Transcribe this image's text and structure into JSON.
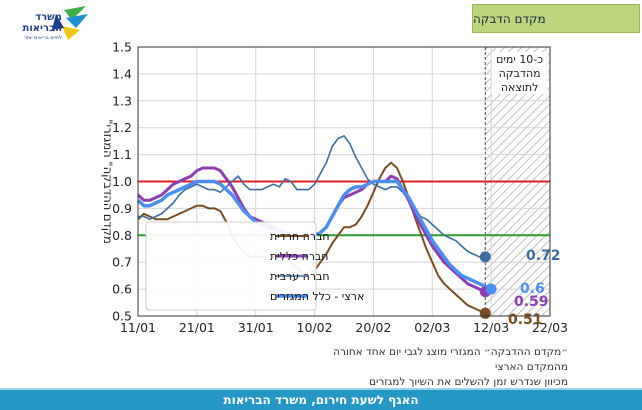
{
  "header": {
    "title": "מקדם הדבקה"
  },
  "logo": {
    "line1": "משרד",
    "line2": "הבריאות",
    "tagline": "לחיים בריאים יותר"
  },
  "footer": {
    "text": "האגף לשעת חירום, משרד הבריאות"
  },
  "caption": {
    "line1": "״מקדם ההדבקה״ המגזרי מוצג לגבי יום אחד אחורה מהמקדם הארצי",
    "line2": "מכיוון שנדרש זמן להשלים את השיוך למגזרים"
  },
  "colors": {
    "haredi": "#7a4e22",
    "general": "#8b3fb0",
    "arab": "#3d6ea0",
    "national": "#4b8ff0",
    "ref_1": "#e02020",
    "ref_08": "#2aa02a",
    "hatch": "#a8a8a8"
  },
  "chart_data": {
    "type": "line",
    "ylabel": "\"מקדם ההדבקה\" המגזרי",
    "ylim": [
      0.5,
      1.5
    ],
    "yticks": [
      "0.5",
      "0.6",
      "0.7",
      "0.8",
      "0.9",
      "1.0",
      "1.1",
      "1.2",
      "1.3",
      "1.4",
      "1.5"
    ],
    "xlim_days": [
      0,
      70
    ],
    "xticks": [
      {
        "label": "11/01",
        "day": 0
      },
      {
        "label": "21/01",
        "day": 10
      },
      {
        "label": "31/01",
        "day": 20
      },
      {
        "label": "10/02",
        "day": 30
      },
      {
        "label": "20/02",
        "day": 40
      },
      {
        "label": "02/03",
        "day": 50
      },
      {
        "label": "12/03",
        "day": 60
      },
      {
        "label": "22/03",
        "day": 70
      }
    ],
    "hatched_region": {
      "from_day": 59,
      "to_day": 70,
      "label_lines": [
        "כ-10 ימים",
        "מהדבקה",
        "לתוצאה"
      ]
    },
    "reference_lines": [
      {
        "y": 1.0,
        "color_key": "ref_1"
      },
      {
        "y": 0.8,
        "color_key": "ref_08"
      }
    ],
    "series": [
      {
        "name": "חברה חרדית",
        "color_key": "haredi",
        "width": 2,
        "end_label": "0.51",
        "x": [
          0,
          1,
          2,
          3,
          4,
          5,
          6,
          7,
          8,
          9,
          10,
          11,
          12,
          13,
          14,
          15,
          16,
          17,
          18,
          19,
          20,
          21,
          22,
          23,
          24,
          25,
          26,
          27,
          28,
          29,
          30,
          31,
          32,
          33,
          34,
          35,
          36,
          37,
          38,
          39,
          40,
          41,
          42,
          43,
          44,
          45,
          46,
          47,
          48,
          49,
          50,
          51,
          52,
          53,
          54,
          55,
          56,
          57,
          58,
          59
        ],
        "y": [
          0.86,
          0.88,
          0.87,
          0.86,
          0.86,
          0.86,
          0.87,
          0.88,
          0.89,
          0.9,
          0.91,
          0.91,
          0.9,
          0.9,
          0.89,
          0.85,
          0.8,
          0.76,
          0.74,
          0.72,
          0.72,
          0.72,
          0.72,
          0.72,
          0.72,
          0.72,
          0.7,
          0.68,
          0.66,
          0.66,
          0.67,
          0.7,
          0.73,
          0.77,
          0.8,
          0.83,
          0.83,
          0.84,
          0.87,
          0.91,
          0.96,
          1.01,
          1.05,
          1.07,
          1.05,
          1.0,
          0.94,
          0.87,
          0.81,
          0.75,
          0.7,
          0.65,
          0.62,
          0.6,
          0.58,
          0.56,
          0.54,
          0.53,
          0.52,
          0.51
        ]
      },
      {
        "name": "חברה כללית",
        "color_key": "general",
        "width": 3,
        "end_label": "0.59",
        "x": [
          0,
          1,
          2,
          3,
          4,
          5,
          6,
          7,
          8,
          9,
          10,
          11,
          12,
          13,
          14,
          15,
          16,
          17,
          18,
          19,
          20,
          21,
          22,
          23,
          24,
          25,
          26,
          27,
          28,
          29,
          30,
          31,
          32,
          33,
          34,
          35,
          36,
          37,
          38,
          39,
          40,
          41,
          42,
          43,
          44,
          45,
          46,
          47,
          48,
          49,
          50,
          51,
          52,
          53,
          54,
          55,
          56,
          57,
          58,
          59
        ],
        "y": [
          0.95,
          0.93,
          0.93,
          0.94,
          0.95,
          0.97,
          0.99,
          1.0,
          1.01,
          1.02,
          1.04,
          1.05,
          1.05,
          1.05,
          1.04,
          1.01,
          0.98,
          0.94,
          0.9,
          0.87,
          0.86,
          0.85,
          0.84,
          0.83,
          0.82,
          0.81,
          0.8,
          0.8,
          0.8,
          0.8,
          0.8,
          0.81,
          0.83,
          0.87,
          0.91,
          0.94,
          0.95,
          0.96,
          0.97,
          0.99,
          1.0,
          1.0,
          1.0,
          1.02,
          1.01,
          0.97,
          0.93,
          0.88,
          0.84,
          0.8,
          0.76,
          0.73,
          0.7,
          0.68,
          0.66,
          0.64,
          0.62,
          0.61,
          0.6,
          0.59
        ]
      },
      {
        "name": "חברה ערבית",
        "color_key": "arab",
        "width": 1.6,
        "end_label": "0.72",
        "x": [
          0,
          1,
          2,
          3,
          4,
          5,
          6,
          7,
          8,
          9,
          10,
          11,
          12,
          13,
          14,
          15,
          16,
          17,
          18,
          19,
          20,
          21,
          22,
          23,
          24,
          25,
          26,
          27,
          28,
          29,
          30,
          31,
          32,
          33,
          34,
          35,
          36,
          37,
          38,
          39,
          40,
          41,
          42,
          43,
          44,
          45,
          46,
          47,
          48,
          49,
          50,
          51,
          52,
          53,
          54,
          55,
          56,
          57,
          58,
          59
        ],
        "y": [
          0.87,
          0.87,
          0.86,
          0.87,
          0.88,
          0.9,
          0.92,
          0.95,
          0.97,
          0.98,
          0.99,
          0.98,
          0.97,
          0.97,
          0.96,
          0.98,
          1.0,
          1.02,
          0.99,
          0.97,
          0.97,
          0.97,
          0.98,
          0.99,
          0.98,
          1.01,
          1.0,
          0.97,
          0.97,
          0.97,
          0.99,
          1.03,
          1.07,
          1.13,
          1.16,
          1.17,
          1.14,
          1.09,
          1.05,
          1.01,
          0.99,
          0.98,
          0.97,
          0.98,
          0.98,
          0.96,
          0.93,
          0.9,
          0.87,
          0.86,
          0.84,
          0.82,
          0.8,
          0.79,
          0.78,
          0.76,
          0.74,
          0.73,
          0.72,
          0.72
        ]
      },
      {
        "name": "ארצי - כלל המגזרים",
        "color_key": "national",
        "width": 3.5,
        "end_label": "0.6",
        "x": [
          0,
          1,
          2,
          3,
          4,
          5,
          6,
          7,
          8,
          9,
          10,
          11,
          12,
          13,
          14,
          15,
          16,
          17,
          18,
          19,
          20,
          21,
          22,
          23,
          24,
          25,
          26,
          27,
          28,
          29,
          30,
          31,
          32,
          33,
          34,
          35,
          36,
          37,
          38,
          39,
          40,
          41,
          42,
          43,
          44,
          45,
          46,
          47,
          48,
          49,
          50,
          51,
          52,
          53,
          54,
          55,
          56,
          57,
          58,
          59,
          60
        ],
        "y": [
          0.93,
          0.91,
          0.91,
          0.92,
          0.93,
          0.95,
          0.96,
          0.97,
          0.98,
          0.99,
          1.0,
          1.0,
          1.0,
          1.0,
          0.99,
          0.97,
          0.95,
          0.92,
          0.89,
          0.87,
          0.85,
          0.84,
          0.83,
          0.82,
          0.82,
          0.81,
          0.8,
          0.8,
          0.8,
          0.8,
          0.8,
          0.81,
          0.83,
          0.87,
          0.91,
          0.95,
          0.97,
          0.98,
          0.98,
          0.99,
          1.0,
          1.0,
          1.0,
          1.0,
          1.0,
          0.97,
          0.94,
          0.9,
          0.86,
          0.82,
          0.78,
          0.75,
          0.72,
          0.69,
          0.67,
          0.65,
          0.64,
          0.63,
          0.62,
          0.61,
          0.6
        ]
      }
    ],
    "legend": {
      "placement": "lower-right",
      "order": [
        "חברה חרדית",
        "חברה כללית",
        "חברה ערבית",
        "ארצי - כלל המגזרים"
      ]
    }
  }
}
